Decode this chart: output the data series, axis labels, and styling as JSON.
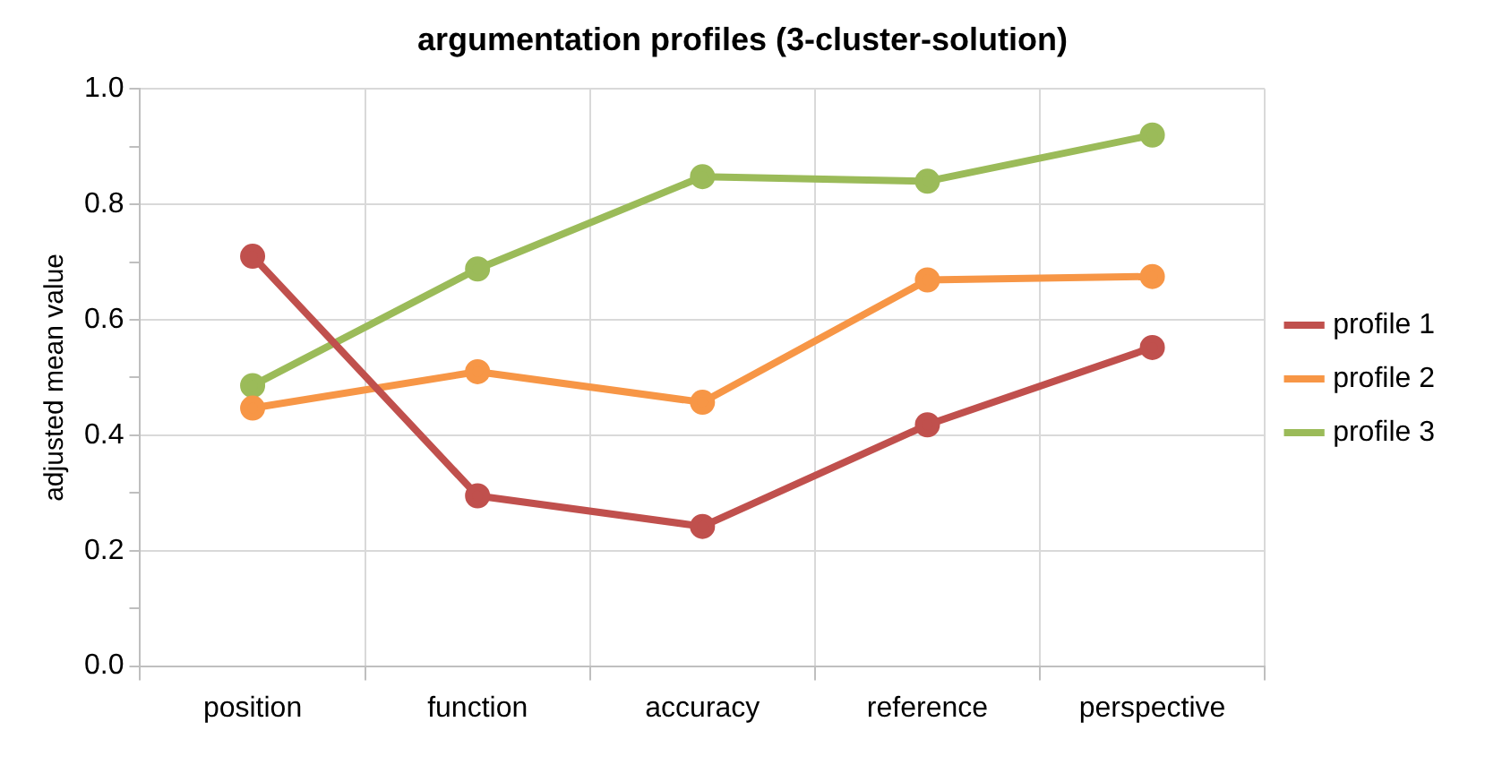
{
  "chart_data": {
    "type": "line",
    "title": "argumentation profiles (3-cluster-solution)",
    "ylabel": "adjusted mean value",
    "categories": [
      "position",
      "function",
      "accuracy",
      "reference",
      "perspective"
    ],
    "series": [
      {
        "name": "profile 1",
        "color": "#c0504d",
        "values": [
          0.71,
          0.295,
          0.242,
          0.418,
          0.552
        ]
      },
      {
        "name": "profile 2",
        "color": "#f79646",
        "values": [
          0.447,
          0.51,
          0.457,
          0.669,
          0.675
        ]
      },
      {
        "name": "profile 3",
        "color": "#9bbb59",
        "values": [
          0.486,
          0.688,
          0.848,
          0.84,
          0.92
        ]
      }
    ],
    "ylim": [
      0,
      1
    ],
    "yticks": [
      {
        "value": 0,
        "label": "0.0"
      },
      {
        "value": 0.1,
        "label": null
      },
      {
        "value": 0.2,
        "label": "0.2"
      },
      {
        "value": 0.3,
        "label": null
      },
      {
        "value": 0.4,
        "label": "0.4"
      },
      {
        "value": 0.5,
        "label": null
      },
      {
        "value": 0.6,
        "label": "0.6"
      },
      {
        "value": 0.7,
        "label": null
      },
      {
        "value": 0.8,
        "label": "0.8"
      },
      {
        "value": 0.9,
        "label": null
      },
      {
        "value": 1,
        "label": "1.0"
      }
    ],
    "grid": true,
    "legend": "right",
    "marker": "circle",
    "line_style": "solid"
  }
}
